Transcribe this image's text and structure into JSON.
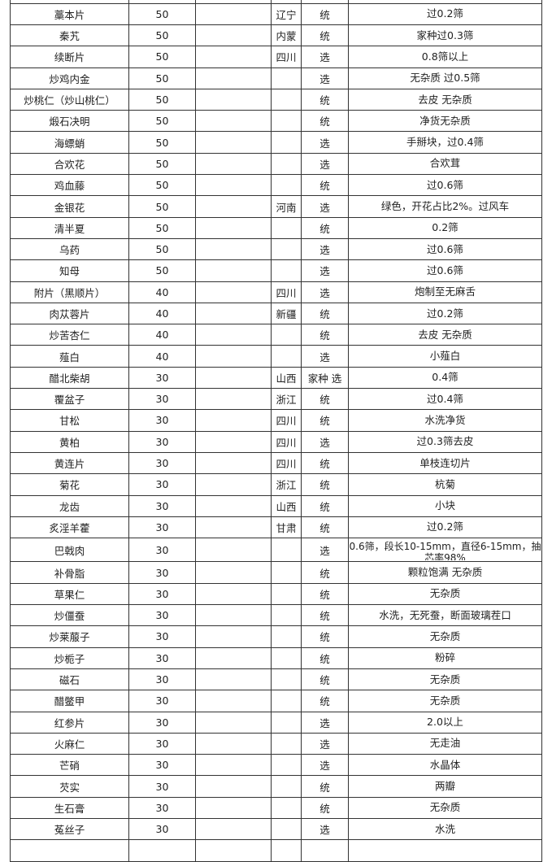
{
  "table": {
    "rows": [
      {
        "name": "",
        "qty": "",
        "blank": "",
        "origin": "",
        "grade": "",
        "spec": ""
      },
      {
        "name": "藁本片",
        "qty": "50",
        "blank": "",
        "origin": "辽宁",
        "grade": "统",
        "spec": "过0.2筛"
      },
      {
        "name": "秦艽",
        "qty": "50",
        "blank": "",
        "origin": "内蒙",
        "grade": "统",
        "spec": "家种过0.3筛"
      },
      {
        "name": "续断片",
        "qty": "50",
        "blank": "",
        "origin": "四川",
        "grade": "选",
        "spec": "0.8筛以上"
      },
      {
        "name": "炒鸡内金",
        "qty": "50",
        "blank": "",
        "origin": "",
        "grade": "选",
        "spec": "无杂质 过0.5筛"
      },
      {
        "name": "炒桃仁（炒山桃仁）",
        "qty": "50",
        "blank": "",
        "origin": "",
        "grade": "统",
        "spec": "去皮 无杂质"
      },
      {
        "name": "煅石决明",
        "qty": "50",
        "blank": "",
        "origin": "",
        "grade": "统",
        "spec": "净货无杂质"
      },
      {
        "name": "海螵蛸",
        "qty": "50",
        "blank": "",
        "origin": "",
        "grade": "选",
        "spec": "手掰块，过0.4筛"
      },
      {
        "name": "合欢花",
        "qty": "50",
        "blank": "",
        "origin": "",
        "grade": "选",
        "spec": "合欢茸"
      },
      {
        "name": "鸡血藤",
        "qty": "50",
        "blank": "",
        "origin": "",
        "grade": "统",
        "spec": "过0.6筛"
      },
      {
        "name": "金银花",
        "qty": "50",
        "blank": "",
        "origin": "河南",
        "grade": "选",
        "spec": "绿色，开花占比2%。过风车"
      },
      {
        "name": "清半夏",
        "qty": "50",
        "blank": "",
        "origin": "",
        "grade": "统",
        "spec": "0.2筛"
      },
      {
        "name": "乌药",
        "qty": "50",
        "blank": "",
        "origin": "",
        "grade": "选",
        "spec": "过0.6筛"
      },
      {
        "name": "知母",
        "qty": "50",
        "blank": "",
        "origin": "",
        "grade": "选",
        "spec": "过0.6筛"
      },
      {
        "name": "附片（黑顺片）",
        "qty": "40",
        "blank": "",
        "origin": "四川",
        "grade": "选",
        "spec": "炮制至无麻舌"
      },
      {
        "name": "肉苁蓉片",
        "qty": "40",
        "blank": "",
        "origin": "新疆",
        "grade": "统",
        "spec": "过0.2筛"
      },
      {
        "name": "炒苦杏仁",
        "qty": "40",
        "blank": "",
        "origin": "",
        "grade": "统",
        "spec": "去皮 无杂质"
      },
      {
        "name": "薤白",
        "qty": "40",
        "blank": "",
        "origin": "",
        "grade": "选",
        "spec": "小薤白"
      },
      {
        "name": "醋北柴胡",
        "qty": "30",
        "blank": "",
        "origin": "山西",
        "grade": "家种 选",
        "spec": "0.4筛"
      },
      {
        "name": "覆盆子",
        "qty": "30",
        "blank": "",
        "origin": "浙江",
        "grade": "统",
        "spec": "过0.4筛"
      },
      {
        "name": "甘松",
        "qty": "30",
        "blank": "",
        "origin": "四川",
        "grade": "统",
        "spec": "水洗净货"
      },
      {
        "name": "黄柏",
        "qty": "30",
        "blank": "",
        "origin": "四川",
        "grade": "选",
        "spec": "过0.3筛去皮"
      },
      {
        "name": "黄连片",
        "qty": "30",
        "blank": "",
        "origin": "四川",
        "grade": "统",
        "spec": "单枝连切片"
      },
      {
        "name": "菊花",
        "qty": "30",
        "blank": "",
        "origin": "浙江",
        "grade": "统",
        "spec": "杭菊"
      },
      {
        "name": "龙齿",
        "qty": "30",
        "blank": "",
        "origin": "山西",
        "grade": "统",
        "spec": "小块"
      },
      {
        "name": "炙淫羊藿",
        "qty": "30",
        "blank": "",
        "origin": "甘肃",
        "grade": "统",
        "spec": "过0.2筛"
      },
      {
        "name": "巴戟肉",
        "qty": "30",
        "blank": "",
        "origin": "",
        "grade": "选",
        "spec": "0.6筛，段长10-15mm，直径6-15mm，抽芯率98%"
      },
      {
        "name": "补骨脂",
        "qty": "30",
        "blank": "",
        "origin": "",
        "grade": "统",
        "spec": "颗粒饱满 无杂质"
      },
      {
        "name": "草果仁",
        "qty": "30",
        "blank": "",
        "origin": "",
        "grade": "统",
        "spec": "无杂质"
      },
      {
        "name": "炒僵蚕",
        "qty": "30",
        "blank": "",
        "origin": "",
        "grade": "统",
        "spec": "水洗，无死蚕，断面玻璃茬口"
      },
      {
        "name": "炒莱菔子",
        "qty": "30",
        "blank": "",
        "origin": "",
        "grade": "统",
        "spec": "无杂质"
      },
      {
        "name": "炒栀子",
        "qty": "30",
        "blank": "",
        "origin": "",
        "grade": "统",
        "spec": "粉碎"
      },
      {
        "name": "磁石",
        "qty": "30",
        "blank": "",
        "origin": "",
        "grade": "统",
        "spec": "无杂质"
      },
      {
        "name": "醋鳖甲",
        "qty": "30",
        "blank": "",
        "origin": "",
        "grade": "统",
        "spec": "无杂质"
      },
      {
        "name": "红参片",
        "qty": "30",
        "blank": "",
        "origin": "",
        "grade": "选",
        "spec": "2.0以上"
      },
      {
        "name": "火麻仁",
        "qty": "30",
        "blank": "",
        "origin": "",
        "grade": "选",
        "spec": "无走油"
      },
      {
        "name": "芒硝",
        "qty": "30",
        "blank": "",
        "origin": "",
        "grade": "选",
        "spec": "水晶体"
      },
      {
        "name": "芡实",
        "qty": "30",
        "blank": "",
        "origin": "",
        "grade": "统",
        "spec": "两瓣"
      },
      {
        "name": "生石膏",
        "qty": "30",
        "blank": "",
        "origin": "",
        "grade": "统",
        "spec": "无杂质"
      },
      {
        "name": "菟丝子",
        "qty": "30",
        "blank": "",
        "origin": "",
        "grade": "选",
        "spec": "水洗"
      },
      {
        "name": "",
        "qty": "",
        "blank": "",
        "origin": "",
        "grade": "",
        "spec": ""
      }
    ]
  }
}
